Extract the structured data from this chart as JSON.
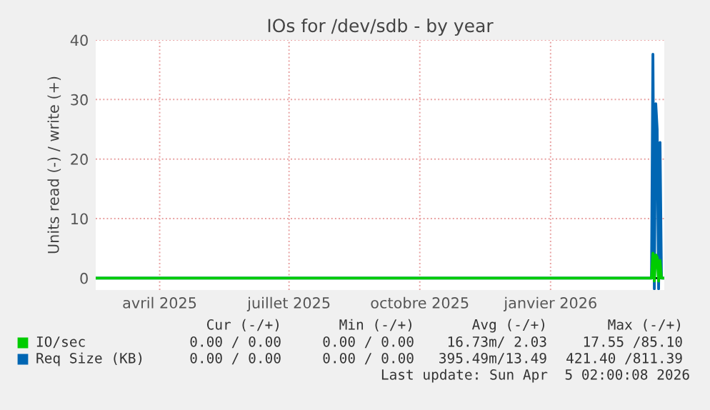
{
  "chart_data": {
    "type": "line",
    "title": "IOs for /dev/sdb - by year",
    "ylabel": "Units read (-) / write (+)",
    "xlim": [
      "2025-03-01",
      "2026-04-05"
    ],
    "xticks": [
      {
        "value": "2025-04-15",
        "label": "avril 2025"
      },
      {
        "value": "2025-07-15",
        "label": "juillet 2025"
      },
      {
        "value": "2025-10-15",
        "label": "octobre 2025"
      },
      {
        "value": "2026-01-15",
        "label": "janvier 2026"
      }
    ],
    "ylim": [
      -2,
      40
    ],
    "yticks": [
      0,
      10,
      20,
      30,
      40
    ],
    "grid": true,
    "legend": "bottom",
    "series": [
      {
        "name": "IO/sec",
        "color": "#00cc00",
        "x": [
          "2025-03-01",
          "2026-03-27",
          "2026-03-28",
          "2026-03-29",
          "2026-03-30",
          "2026-03-31",
          "2026-04-01",
          "2026-04-02",
          "2026-04-03",
          "2026-04-05"
        ],
        "values": [
          0,
          0,
          4.2,
          -0.5,
          3.9,
          3.5,
          -0.5,
          3,
          0,
          0
        ]
      },
      {
        "name": "Req Size (KB)",
        "color": "#0066b3",
        "x": [
          "2025-03-01",
          "2026-03-27",
          "2026-03-28",
          "2026-03-29",
          "2026-03-30",
          "2026-03-31",
          "2026-04-01",
          "2026-04-02",
          "2026-04-03",
          "2026-04-05"
        ],
        "values": [
          0,
          0,
          37.6,
          -1.8,
          29.3,
          25,
          -1.8,
          22.8,
          0,
          0
        ]
      }
    ],
    "annotations": [
      "Cur (-/+)",
      "Min (-/+)",
      "Avg (-/+)",
      "Max (-/+)",
      "0.00 / 0.00",
      "0.00 / 0.00",
      "16.73m/ 2.03",
      "17.55 /85.10",
      "0.00 / 0.00",
      "0.00 / 0.00",
      "395.49m/13.49",
      "421.40 /811.39",
      "Last update: Sun Apr  5 02:00:08 2026"
    ]
  }
}
